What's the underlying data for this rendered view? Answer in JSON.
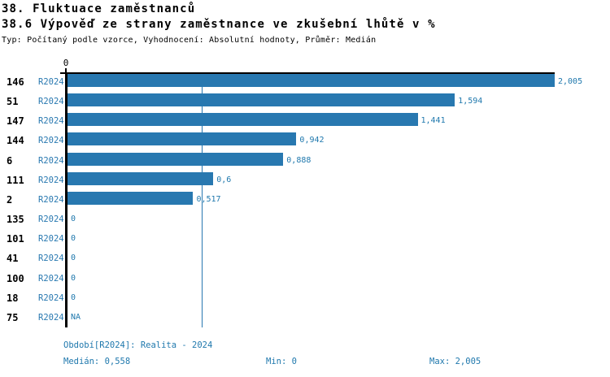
{
  "header": {
    "title": "38. Fluktuace zaměstnanců",
    "subtitle": "38.6 Výpověď ze strany zaměstnance ve zkušební lhůtě v %",
    "meta": "Typ: Počítaný podle vzorce, Vyhodnocení: Absolutní hodnoty, Průměr: Medián"
  },
  "chart_data": {
    "type": "bar",
    "orientation": "horizontal",
    "series_name": "R2024",
    "categories": [
      "146",
      "51",
      "147",
      "144",
      "6",
      "111",
      "2",
      "135",
      "101",
      "41",
      "100",
      "18",
      "75"
    ],
    "rows": [
      {
        "category": "146",
        "series": "R2024",
        "value": 2.005,
        "label": "2,005"
      },
      {
        "category": "51",
        "series": "R2024",
        "value": 1.594,
        "label": "1,594"
      },
      {
        "category": "147",
        "series": "R2024",
        "value": 1.441,
        "label": "1,441"
      },
      {
        "category": "144",
        "series": "R2024",
        "value": 0.942,
        "label": "0,942"
      },
      {
        "category": "6",
        "series": "R2024",
        "value": 0.888,
        "label": "0,888"
      },
      {
        "category": "111",
        "series": "R2024",
        "value": 0.6,
        "label": "0,6"
      },
      {
        "category": "2",
        "series": "R2024",
        "value": 0.517,
        "label": "0,517"
      },
      {
        "category": "135",
        "series": "R2024",
        "value": 0,
        "label": "0"
      },
      {
        "category": "101",
        "series": "R2024",
        "value": 0,
        "label": "0"
      },
      {
        "category": "41",
        "series": "R2024",
        "value": 0,
        "label": "0"
      },
      {
        "category": "100",
        "series": "R2024",
        "value": 0,
        "label": "0"
      },
      {
        "category": "18",
        "series": "R2024",
        "value": 0,
        "label": "0"
      },
      {
        "category": "75",
        "series": "R2024",
        "value": null,
        "label": "NA"
      }
    ],
    "xlim": [
      0,
      2.005
    ],
    "x_ticks": [
      {
        "value": 0,
        "label": "0"
      }
    ],
    "median_line": {
      "value": 0.558
    },
    "grid": false,
    "legend_position": "none"
  },
  "footer": {
    "period": "Období[R2024]: Realita - 2024",
    "median": "Medián: 0,558",
    "min": "Min: 0",
    "max": "Max: 2,005"
  },
  "colors": {
    "bar": "#2878b0",
    "accent_text": "#1f78ad",
    "axis": "#000000",
    "background": "#ffffff"
  }
}
